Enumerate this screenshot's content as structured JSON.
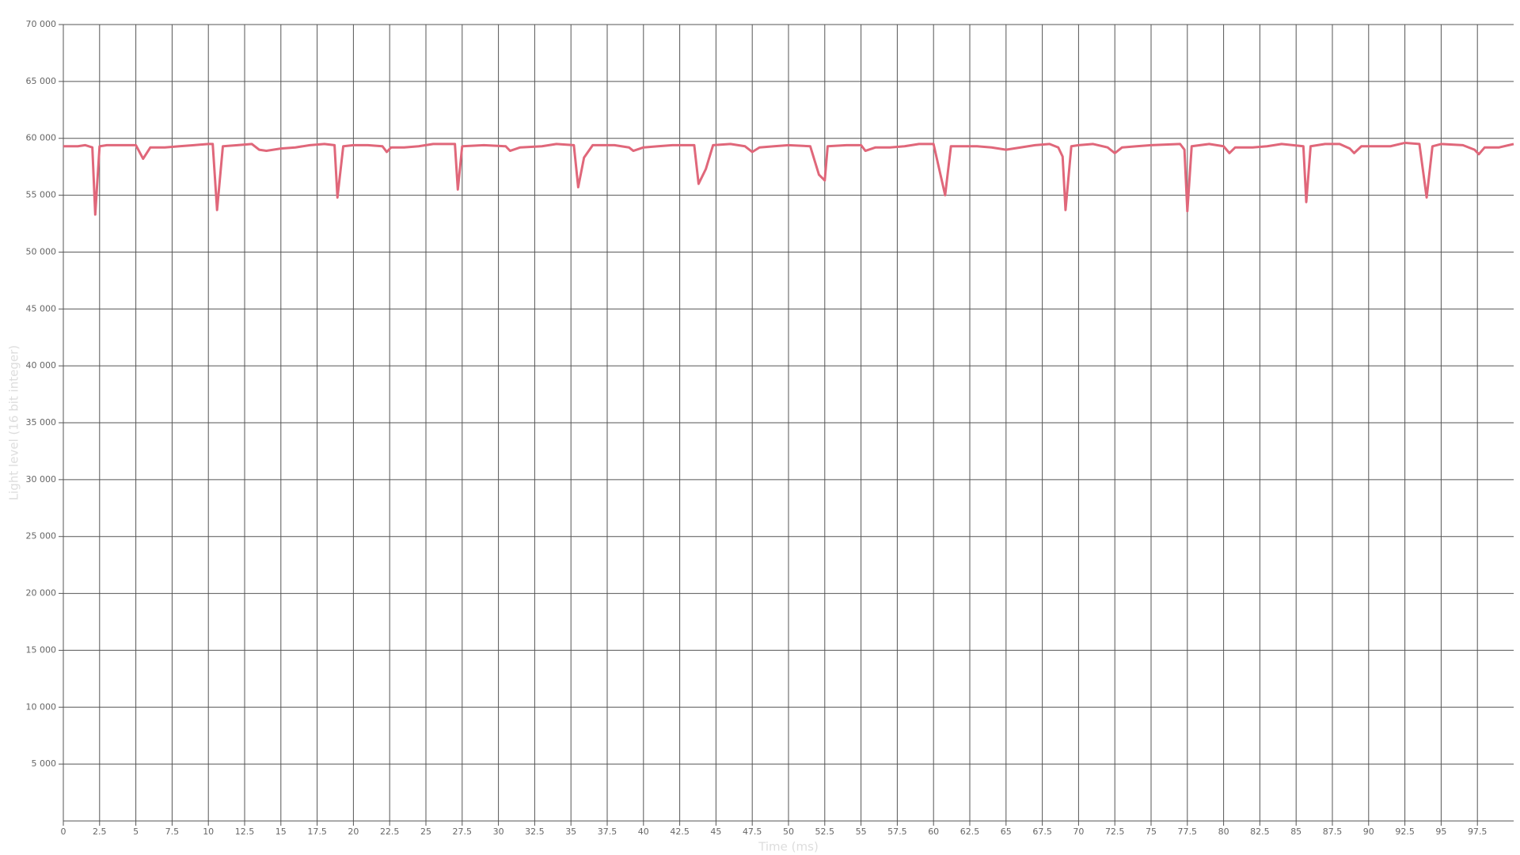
{
  "chart_data": {
    "type": "line",
    "x_label": "Time (ms)",
    "y_label": "Light level (16 bit integer)",
    "xlim": [
      0,
      100
    ],
    "ylim": [
      0,
      70000
    ],
    "grid": true,
    "xticks": [
      0,
      2.5,
      5,
      7.5,
      10,
      12.5,
      15,
      17.5,
      20,
      22.5,
      25,
      27.5,
      30,
      32.5,
      35,
      37.5,
      40,
      42.5,
      45,
      47.5,
      50,
      52.5,
      55,
      57.5,
      60,
      62.5,
      65,
      67.5,
      70,
      72.5,
      75,
      77.5,
      80,
      82.5,
      85,
      87.5,
      90,
      92.5,
      95,
      97.5
    ],
    "yticks": [
      {
        "value": 5000,
        "label": "5 000"
      },
      {
        "value": 10000,
        "label": "10 000"
      },
      {
        "value": 15000,
        "label": "15 000"
      },
      {
        "value": 20000,
        "label": "20 000"
      },
      {
        "value": 25000,
        "label": "25 000"
      },
      {
        "value": 30000,
        "label": "30 000"
      },
      {
        "value": 35000,
        "label": "35 000"
      },
      {
        "value": 40000,
        "label": "40 000"
      },
      {
        "value": 45000,
        "label": "45 000"
      },
      {
        "value": 50000,
        "label": "50 000"
      },
      {
        "value": 55000,
        "label": "55 000"
      },
      {
        "value": 60000,
        "label": "60 000"
      },
      {
        "value": 65000,
        "label": "65 000"
      },
      {
        "value": 70000,
        "label": "70 000"
      }
    ],
    "x": [
      0,
      1,
      1.5,
      2,
      2.2,
      2.5,
      3,
      4,
      5,
      5.5,
      6,
      7,
      8,
      9,
      10,
      10.3,
      10.6,
      11,
      12,
      13,
      13.5,
      14,
      15,
      16,
      17,
      18,
      18.7,
      18.9,
      19.3,
      20,
      21,
      22,
      22.3,
      22.6,
      23.5,
      24.5,
      25.5,
      27,
      27.2,
      27.5,
      29,
      30.5,
      30.8,
      31.5,
      33,
      34,
      35.2,
      35.5,
      35.9,
      36.5,
      38,
      39,
      39.3,
      40,
      41,
      42,
      43.5,
      43.8,
      44.3,
      44.8,
      46,
      47,
      47.5,
      48,
      49,
      50,
      51.5,
      52.1,
      52.5,
      52.7,
      54,
      55,
      55.3,
      56,
      57,
      58,
      59,
      60,
      60.8,
      61.2,
      62,
      63,
      64,
      65,
      66,
      67,
      68,
      68.6,
      68.9,
      69.1,
      69.5,
      70,
      71,
      72,
      72.5,
      73,
      74,
      75,
      77,
      77.3,
      77.5,
      77.8,
      79,
      80,
      80.4,
      80.8,
      82,
      83,
      84,
      85.5,
      85.7,
      86,
      87,
      88,
      88.7,
      89,
      89.5,
      90.5,
      91.5,
      92.5,
      93.5,
      94,
      94.4,
      95,
      96.5,
      97.3,
      97.6,
      98,
      99,
      100
    ],
    "series": [
      {
        "color": "#e0677a",
        "values": [
          59300,
          59300,
          59400,
          59200,
          53300,
          59300,
          59400,
          59400,
          59400,
          58200,
          59200,
          59200,
          59300,
          59400,
          59500,
          59500,
          53700,
          59300,
          59400,
          59500,
          59000,
          58900,
          59100,
          59200,
          59400,
          59500,
          59400,
          54800,
          59300,
          59400,
          59400,
          59300,
          58800,
          59200,
          59200,
          59300,
          59500,
          59500,
          55500,
          59300,
          59400,
          59300,
          58900,
          59200,
          59300,
          59500,
          59400,
          55700,
          58300,
          59400,
          59400,
          59200,
          58900,
          59200,
          59300,
          59400,
          59400,
          56000,
          57300,
          59400,
          59500,
          59300,
          58800,
          59200,
          59300,
          59400,
          59300,
          56800,
          56300,
          59300,
          59400,
          59400,
          58900,
          59200,
          59200,
          59300,
          59500,
          59500,
          55000,
          59300,
          59300,
          59300,
          59200,
          59000,
          59200,
          59400,
          59500,
          59200,
          58400,
          53700,
          59300,
          59400,
          59500,
          59200,
          58700,
          59200,
          59300,
          59400,
          59500,
          59000,
          53600,
          59300,
          59500,
          59300,
          58700,
          59200,
          59200,
          59300,
          59500,
          59300,
          54400,
          59300,
          59500,
          59500,
          59100,
          58700,
          59300,
          59300,
          59300,
          59600,
          59500,
          54800,
          59300,
          59500,
          59400,
          59000,
          58600,
          59200,
          59200,
          59500
        ]
      }
    ]
  }
}
